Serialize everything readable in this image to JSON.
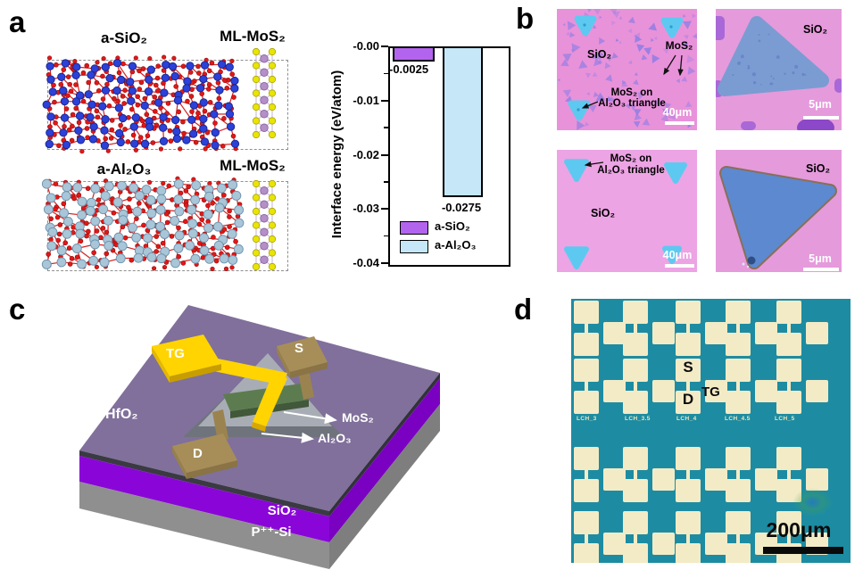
{
  "figure_background": "#ffffff",
  "chart_data": {
    "type": "bar",
    "categories": [
      "a-SiO₂",
      "a-Al₂O₃"
    ],
    "values": [
      -0.0025,
      -0.0275
    ],
    "bar_labels": [
      "-0.0025",
      "-0.0275"
    ],
    "bar_colors": [
      "#b364ee",
      "#c5e7f8"
    ],
    "title": "",
    "xlabel": "",
    "ylabel": "Interface energy (eV/atom)",
    "ylim": [
      0,
      -0.04
    ],
    "yticks": [
      "-0.00",
      "-0.01",
      "-0.02",
      "-0.03",
      "-0.04"
    ],
    "grid": false,
    "legend_position": "lower left",
    "legend": [
      {
        "label": "a-SiO₂",
        "color": "#b364ee"
      },
      {
        "label": "a-Al₂O₃",
        "color": "#c5e7f8"
      }
    ]
  },
  "panels": {
    "a": {
      "letter": "a",
      "models": [
        {
          "substrate_title": "a-SiO₂",
          "overlayer_title": "ML-MoS₂",
          "cation_color": "#2b41d8",
          "cation_edge": "#14248f",
          "oxygen_color": "#e21717",
          "bond_color": "#d92020"
        },
        {
          "substrate_title": "a-Al₂O₃",
          "overlayer_title": "ML-MoS₂",
          "cation_color": "#a9c6d8",
          "cation_edge": "#6d93ad",
          "oxygen_color": "#e21717",
          "bond_color": "#d92020"
        }
      ],
      "mos2_atom_colors": {
        "sulfur": "#e9e404",
        "sulfur_edge": "#a8a400",
        "molybdenum": "#b58fc8",
        "molybdenum_edge": "#84619b"
      }
    },
    "b": {
      "letter": "b",
      "colors": {
        "substrate_pink": "#e892da",
        "substrate_pink_bright": "#e59adc",
        "substrate_pink_light": "#eca4e4",
        "flake_violet": "#8b7ce4",
        "triangle_cyan": "#5ec9f0",
        "large_flake_blue": "#7b9cd2",
        "large_triangle_blue": "#5d89d0"
      },
      "images": [
        {
          "substrate_label": "SiO₂",
          "flake_label": "MoS₂",
          "note_line1": "MoS₂ on",
          "note_line2": "Al₂O₃ triangle",
          "scale_label": "40μm"
        },
        {
          "substrate_label": "SiO₂",
          "scale_label": "5μm"
        },
        {
          "substrate_label": "SiO₂",
          "note_line1": "MoS₂ on",
          "note_line2": "Al₂O₃ triangle",
          "scale_label": "40μm"
        },
        {
          "substrate_label": "SiO₂",
          "scale_label": "5μm"
        }
      ]
    },
    "c": {
      "letter": "c",
      "labels": {
        "top_gate": "TG",
        "source": "S",
        "drain": "D",
        "hfo2": "HfO₂",
        "mos2": "MoS₂",
        "al2o3": "Al₂O₃",
        "sio2": "SiO₂",
        "substrate": "P⁺⁺-Si"
      },
      "colors": {
        "hfo2": "#80709b",
        "sio2": "#8a06d8",
        "substrate": "#8f8f8f",
        "gate_metal": "#ffd400",
        "contact_metal": "#a78e59",
        "al2o3": "#a8adb5",
        "mos2": "#5c7c50"
      }
    },
    "d": {
      "letter": "d",
      "labels": {
        "source": "S",
        "drain": "D",
        "top_gate": "TG"
      },
      "column_labels": [
        "LCH_3",
        "LCH_3.5",
        "LCH_4",
        "LCH_4.5",
        "LCH_5"
      ],
      "scale_label": "200μm",
      "colors": {
        "background": "#1d8ca2",
        "pad_metal": "#f3ebc6",
        "label_text": "#efe7bf"
      }
    }
  }
}
